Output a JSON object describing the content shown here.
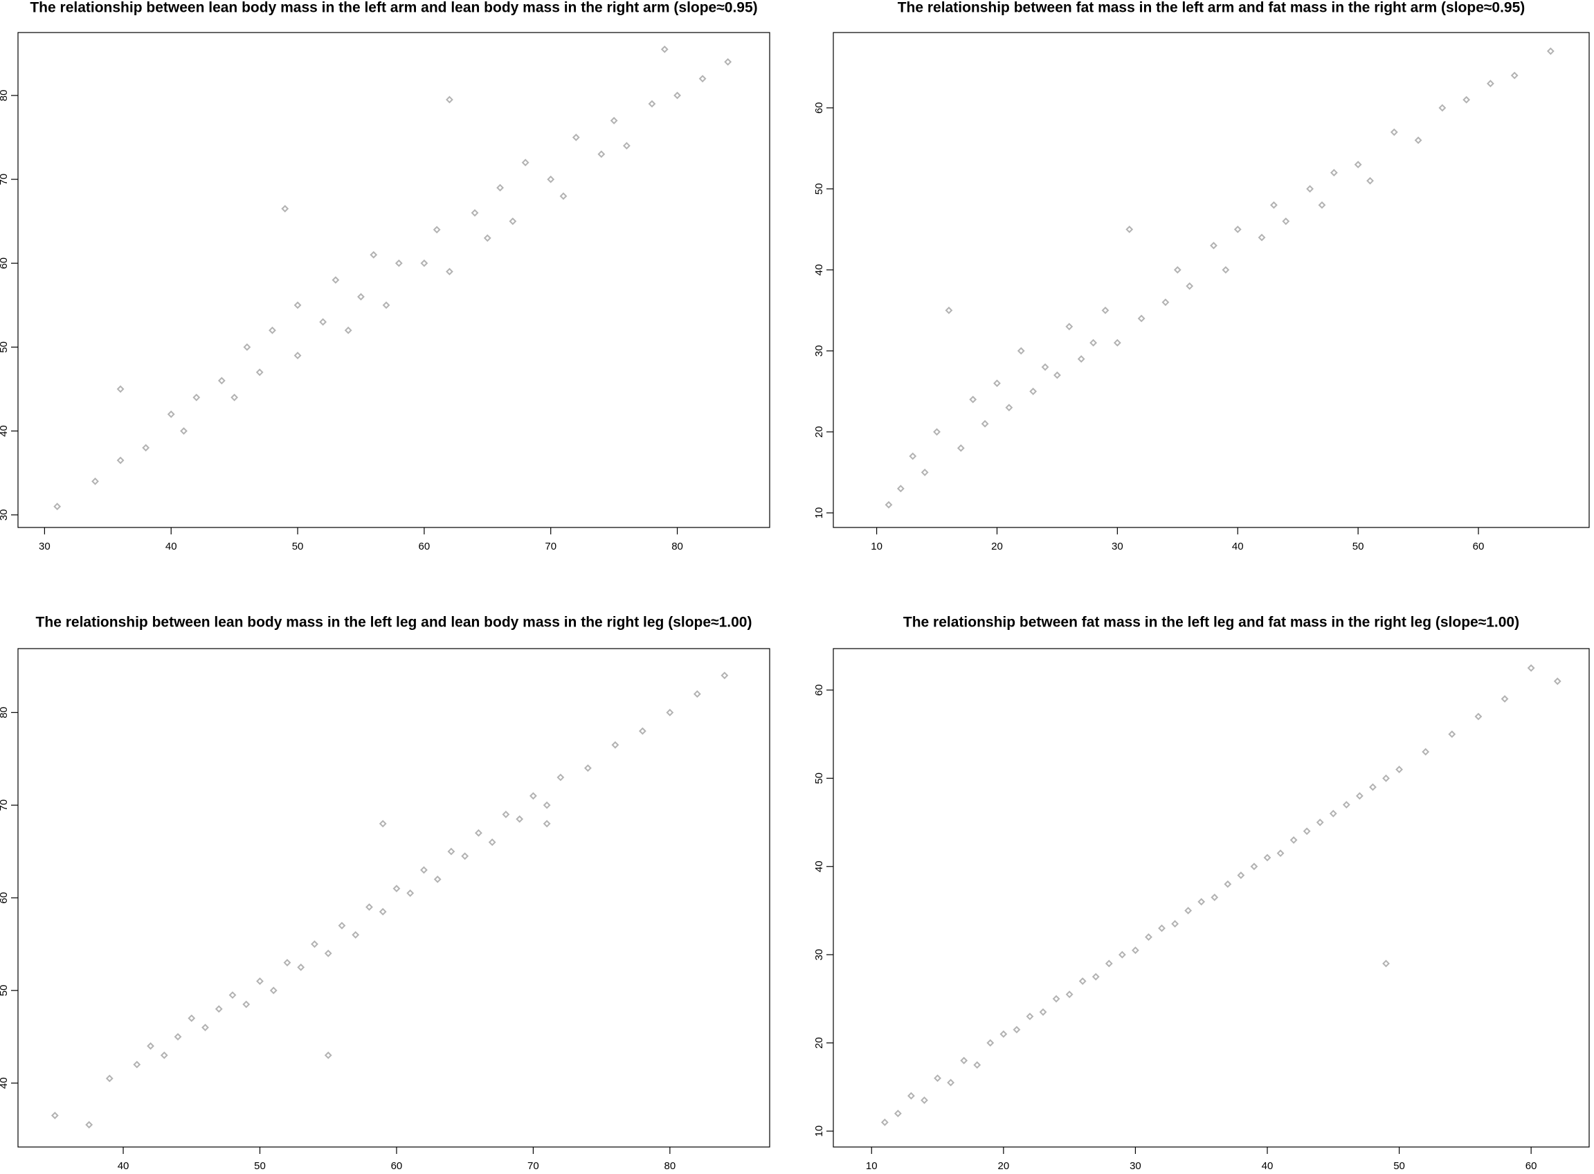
{
  "chart_data": [
    {
      "type": "scatter",
      "title": "The relationship between lean body mass in the left arm and lean body mass in the right arm (slope≈0.95)",
      "color": "rgba(0,0,0,0.3)",
      "x": [
        31,
        34,
        36,
        36,
        38,
        40,
        41,
        42,
        44,
        45,
        46,
        47,
        48,
        50,
        50,
        52,
        53,
        54,
        55,
        56,
        57,
        58,
        60,
        61,
        62,
        62,
        64,
        65,
        66,
        67,
        68,
        70,
        71,
        72,
        74,
        75,
        76,
        78,
        80,
        82,
        84,
        79,
        49
      ],
      "values": [
        31,
        34,
        36.5,
        45,
        38,
        42,
        40,
        44,
        46,
        44,
        50,
        47,
        52,
        49,
        55,
        53,
        58,
        52,
        56,
        61,
        55,
        60,
        60,
        64,
        59,
        79.5,
        66,
        63,
        69,
        65,
        72,
        70,
        68,
        75,
        73,
        77,
        74,
        79,
        80,
        82,
        84,
        85.5,
        66.5
      ],
      "xlim": [
        27.9,
        87.3
      ],
      "ylim": [
        28.5,
        87.5
      ],
      "xticks": [
        30,
        40,
        50,
        60,
        70,
        80
      ],
      "yticks": [
        30,
        40,
        50,
        60,
        70,
        80
      ]
    },
    {
      "type": "scatter",
      "title": "The relationship between fat mass in the left arm and fat mass in the right arm (slope≈0.95)",
      "color": "rgba(0,0,0,0.3)",
      "x": [
        11,
        12,
        13,
        14,
        15,
        16,
        17,
        18,
        19,
        20,
        21,
        22,
        23,
        24,
        25,
        26,
        27,
        28,
        29,
        30,
        31,
        32,
        34,
        35,
        36,
        38,
        39,
        40,
        42,
        43,
        44,
        46,
        47,
        48,
        50,
        51,
        53,
        55,
        57,
        59,
        61,
        63,
        66
      ],
      "values": [
        11,
        13,
        17,
        15,
        20,
        35,
        18,
        24,
        21,
        26,
        23,
        30,
        25,
        28,
        27,
        33,
        29,
        31,
        35,
        31,
        45,
        34,
        36,
        40,
        38,
        43,
        40,
        45,
        44,
        48,
        46,
        50,
        48,
        52,
        53,
        51,
        57,
        56,
        60,
        61,
        63,
        64,
        67
      ],
      "xlim": [
        6.4,
        69.2
      ],
      "ylim": [
        8.2,
        69.3
      ],
      "xticks": [
        10,
        20,
        30,
        40,
        50,
        60
      ],
      "yticks": [
        10,
        20,
        30,
        40,
        50,
        60
      ]
    },
    {
      "type": "scatter",
      "title": "The relationship between lean body mass in the left leg and lean body mass in the right leg (slope≈1.00)",
      "color": "rgba(0,0,0,0.3)",
      "x": [
        35,
        37.5,
        39,
        41,
        42,
        43,
        44,
        45,
        46,
        47,
        48,
        49,
        50,
        51,
        52,
        53,
        54,
        55,
        56,
        57,
        58,
        59,
        60,
        61,
        62,
        63,
        64,
        65,
        66,
        67,
        68,
        69,
        70,
        71,
        72,
        74,
        76,
        78,
        80,
        82,
        84,
        59,
        55,
        71
      ],
      "values": [
        36.5,
        35.5,
        40.5,
        42,
        44,
        43,
        45,
        47,
        46,
        48,
        49.5,
        48.5,
        51,
        50,
        53,
        52.5,
        55,
        54,
        57,
        56,
        59,
        58.5,
        61,
        60.5,
        63,
        62,
        65,
        64.5,
        67,
        66,
        69,
        68.5,
        71,
        70,
        73,
        74,
        76.5,
        78,
        80,
        82,
        84,
        68,
        43,
        68
      ],
      "xlim": [
        32.3,
        87.3
      ],
      "ylim": [
        33.1,
        86.9
      ],
      "xticks": [
        40,
        50,
        60,
        70,
        80
      ],
      "yticks": [
        40,
        50,
        60,
        70,
        80
      ]
    },
    {
      "type": "scatter",
      "title": "The relationship between fat mass in the left leg and fat mass in the right leg (slope≈1.00)",
      "color": "rgba(0,0,0,0.3)",
      "x": [
        11,
        12,
        13,
        14,
        15,
        16,
        17,
        18,
        19,
        20,
        21,
        22,
        23,
        24,
        25,
        26,
        27,
        28,
        29,
        30,
        31,
        32,
        33,
        34,
        35,
        36,
        37,
        38,
        39,
        40,
        41,
        42,
        43,
        44,
        45,
        46,
        47,
        48,
        49,
        50,
        52,
        54,
        56,
        58,
        60,
        62,
        49
      ],
      "values": [
        11,
        12,
        14,
        13.5,
        16,
        15.5,
        18,
        17.5,
        20,
        21,
        21.5,
        23,
        23.5,
        25,
        25.5,
        27,
        27.5,
        29,
        30,
        30.5,
        32,
        33,
        33.5,
        35,
        36,
        36.5,
        38,
        39,
        40,
        41,
        41.5,
        43,
        44,
        45,
        46,
        47,
        48,
        49,
        50,
        51,
        53,
        55,
        57,
        59,
        62.5,
        61,
        29
      ],
      "xlim": [
        7.1,
        64.4
      ],
      "ylim": [
        8.2,
        64.7
      ],
      "xticks": [
        10,
        20,
        30,
        40,
        50,
        60
      ],
      "yticks": [
        10,
        20,
        30,
        40,
        50,
        60
      ]
    }
  ]
}
